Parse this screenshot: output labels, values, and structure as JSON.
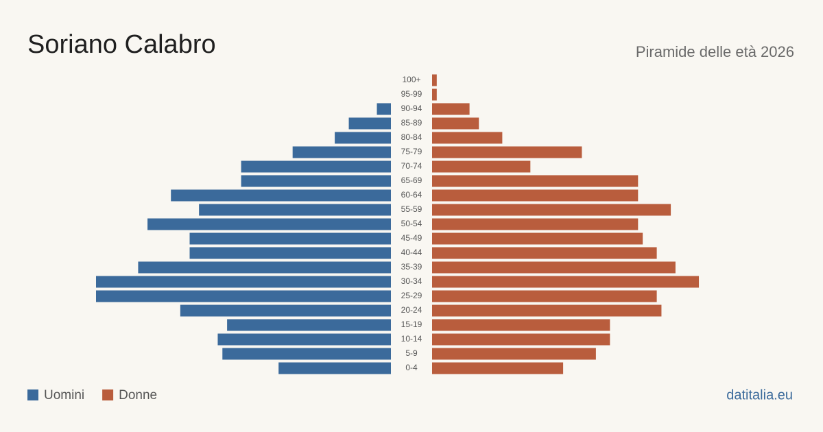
{
  "chart_data": {
    "type": "pyramid",
    "title": "Soriano Calabro",
    "subtitle": "Piramide delle età 2026",
    "categories": [
      "100+",
      "95-99",
      "90-94",
      "85-89",
      "80-84",
      "75-79",
      "70-74",
      "65-69",
      "60-64",
      "55-59",
      "50-54",
      "45-49",
      "40-44",
      "35-39",
      "30-34",
      "25-29",
      "20-24",
      "15-19",
      "10-14",
      "5-9",
      "0-4"
    ],
    "series": [
      {
        "name": "Uomini",
        "color": "#3b6a9b",
        "values": [
          0,
          0,
          3,
          9,
          12,
          21,
          32,
          32,
          47,
          41,
          52,
          43,
          43,
          54,
          63,
          63,
          45,
          35,
          37,
          36,
          24
        ]
      },
      {
        "name": "Donne",
        "color": "#b95d3d",
        "values": [
          1,
          1,
          8,
          10,
          15,
          32,
          21,
          44,
          44,
          51,
          44,
          45,
          48,
          52,
          57,
          48,
          49,
          38,
          38,
          35,
          28
        ]
      }
    ],
    "source": "datitalia.eu"
  }
}
